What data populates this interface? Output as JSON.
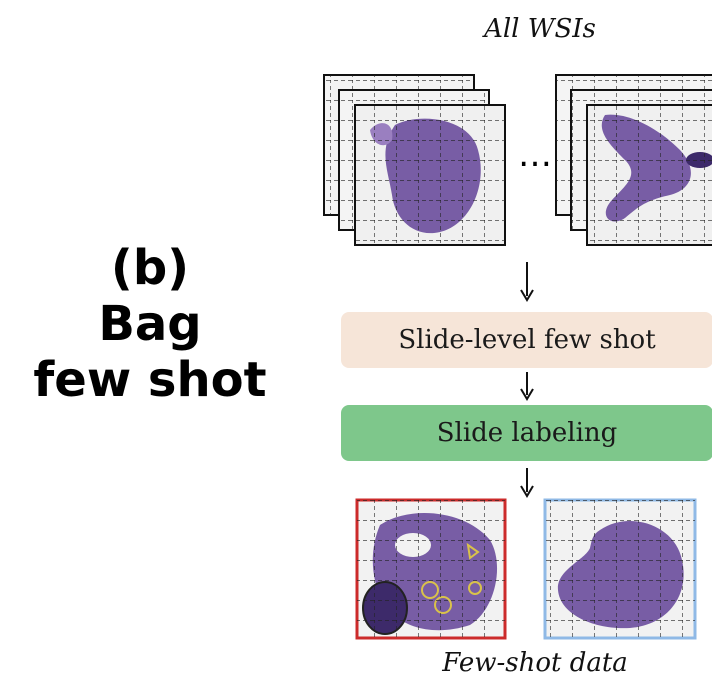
{
  "panel": {
    "letter": "(b)",
    "line1": "Bag",
    "line2": "few shot"
  },
  "diagram": {
    "title": "All WSIs",
    "ellipsis": "…",
    "step1": "Slide-level few shot",
    "step2": "Slide labeling",
    "output_label": "Few-shot data"
  },
  "colors": {
    "tissue": "#6a4c9c",
    "tissue_light": "#9a7fc0",
    "step1_bg": "#f6e5d8",
    "step2_bg": "#7ec78b",
    "positive_border": "#cc2b2b",
    "negative_border": "#8fb9e6",
    "annotation": "#d9c24a"
  }
}
